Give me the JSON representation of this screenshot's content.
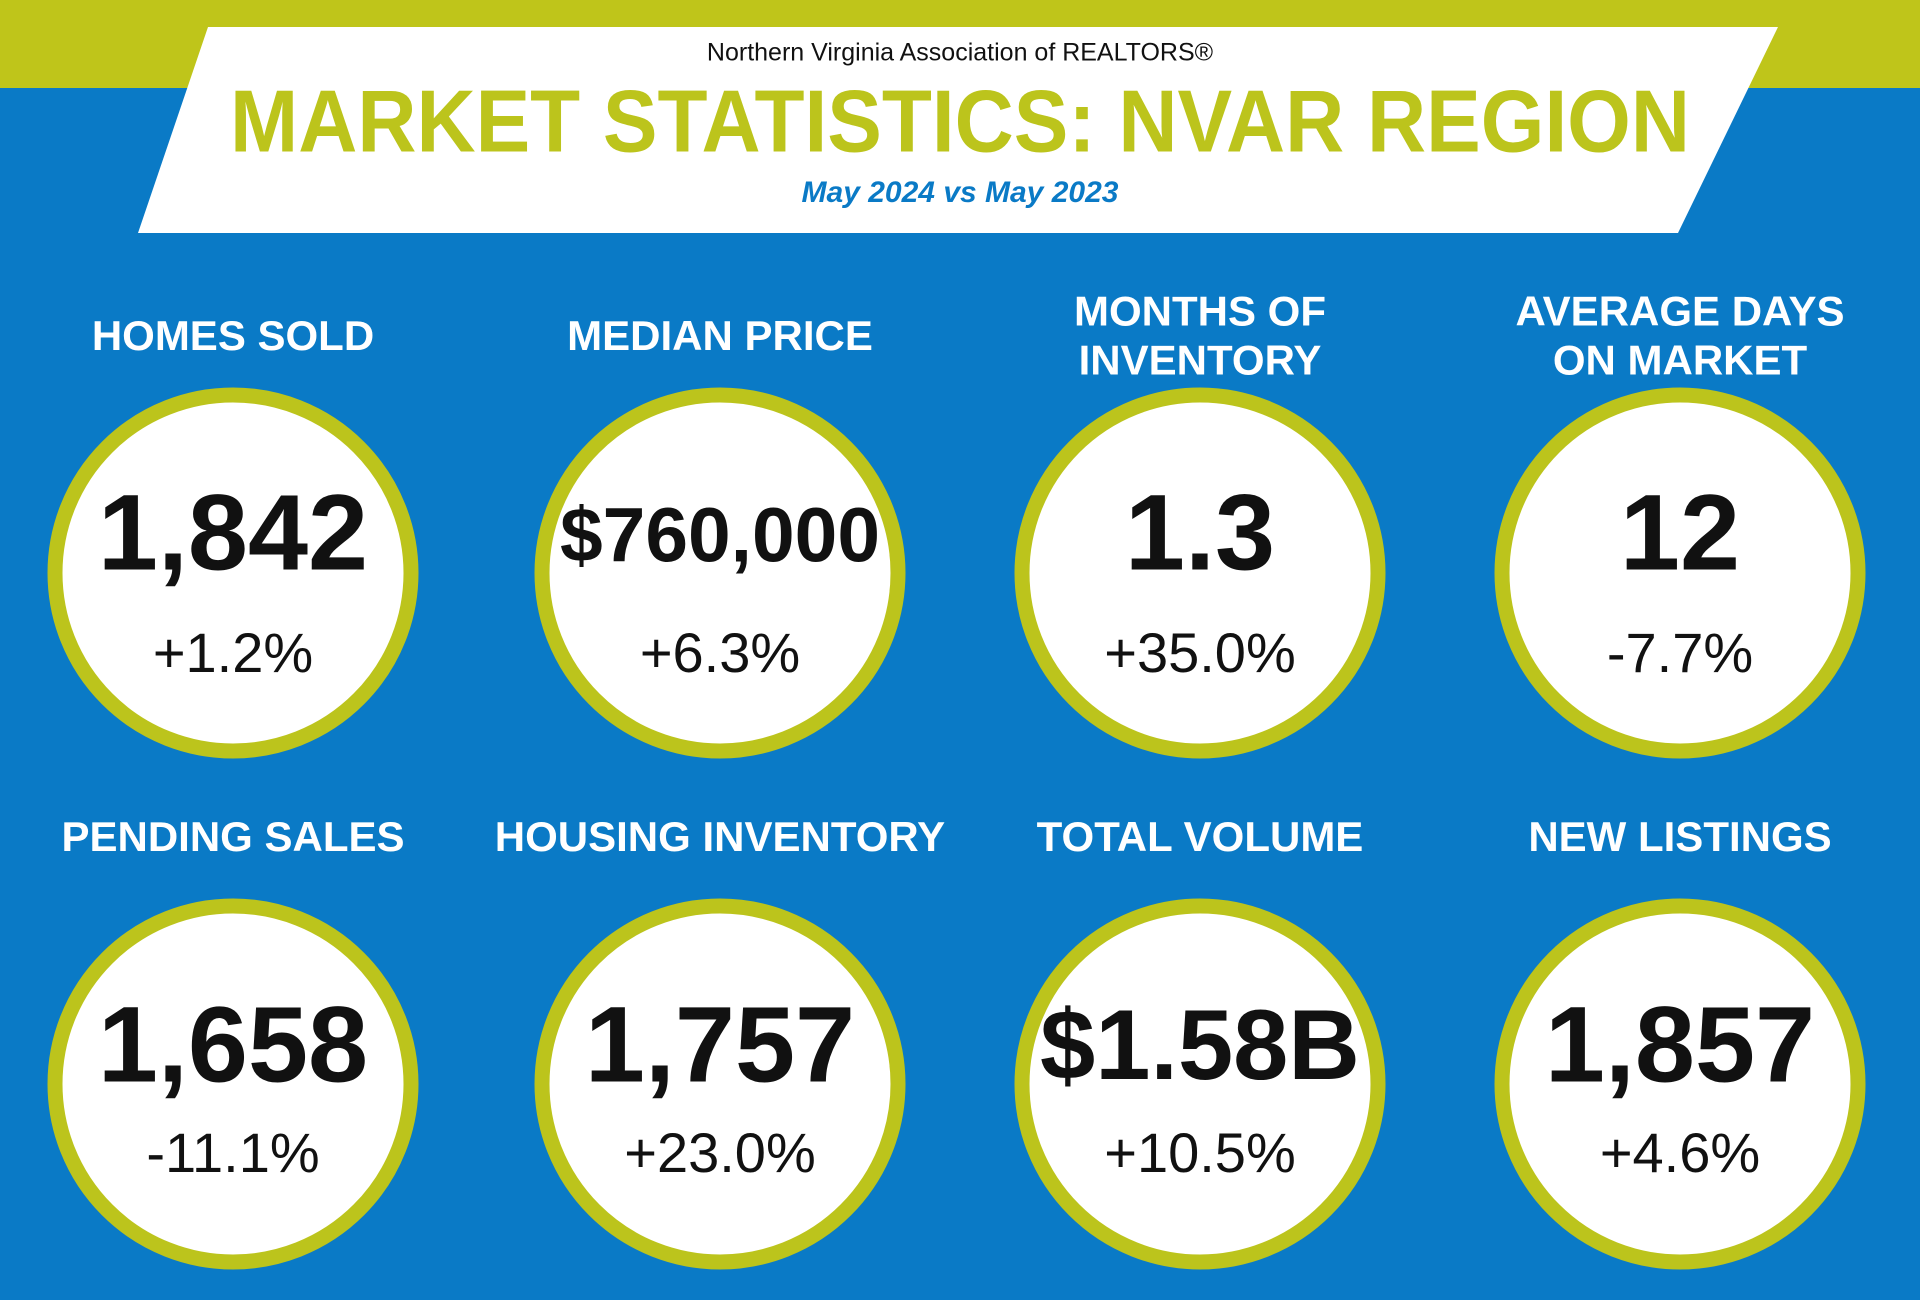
{
  "header": {
    "org": "Northern Virginia Association of REALTORS®",
    "title": "MARKET STATISTICS: NVAR REGION",
    "subtitle": "May 2024 vs May 2023"
  },
  "stats": [
    {
      "label": [
        "HOMES SOLD"
      ],
      "value": "1,842",
      "change": "+1.2%"
    },
    {
      "label": [
        "MEDIAN PRICE"
      ],
      "value": "$760,000",
      "change": "+6.3%"
    },
    {
      "label": [
        "MONTHS OF",
        "INVENTORY"
      ],
      "value": "1.3",
      "change": "+35.0%"
    },
    {
      "label": [
        "AVERAGE DAYS",
        "ON MARKET"
      ],
      "value": "12",
      "change": "-7.7%"
    },
    {
      "label": [
        "PENDING SALES"
      ],
      "value": "1,658",
      "change": "-11.1%"
    },
    {
      "label": [
        "HOUSING INVENTORY"
      ],
      "value": "1,757",
      "change": "+23.0%"
    },
    {
      "label": [
        "TOTAL VOLUME"
      ],
      "value": "$1.58B",
      "change": "+10.5%"
    },
    {
      "label": [
        "NEW LISTINGS"
      ],
      "value": "1,857",
      "change": "+4.6%"
    }
  ]
}
